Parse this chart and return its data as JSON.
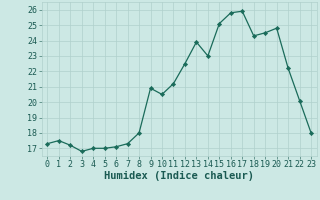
{
  "x": [
    0,
    1,
    2,
    3,
    4,
    5,
    6,
    7,
    8,
    9,
    10,
    11,
    12,
    13,
    14,
    15,
    16,
    17,
    18,
    19,
    20,
    21,
    22,
    23
  ],
  "y": [
    17.3,
    17.5,
    17.2,
    16.8,
    17.0,
    17.0,
    17.1,
    17.3,
    18.0,
    20.9,
    20.5,
    21.2,
    22.5,
    23.9,
    23.0,
    25.1,
    25.8,
    25.9,
    24.3,
    24.5,
    24.8,
    22.2,
    20.1,
    18.0
  ],
  "line_color": "#1a6b5a",
  "marker": "D",
  "marker_size": 2.2,
  "bg_color": "#cce8e4",
  "grid_color": "#b0d0cc",
  "xlabel": "Humidex (Indice chaleur)",
  "xlim": [
    -0.5,
    23.5
  ],
  "ylim": [
    16.5,
    26.5
  ],
  "yticks": [
    17,
    18,
    19,
    20,
    21,
    22,
    23,
    24,
    25,
    26
  ],
  "xticks": [
    0,
    1,
    2,
    3,
    4,
    5,
    6,
    7,
    8,
    9,
    10,
    11,
    12,
    13,
    14,
    15,
    16,
    17,
    18,
    19,
    20,
    21,
    22,
    23
  ],
  "xtick_labels": [
    "0",
    "1",
    "2",
    "3",
    "4",
    "5",
    "6",
    "7",
    "8",
    "9",
    "10",
    "11",
    "12",
    "13",
    "14",
    "15",
    "16",
    "17",
    "18",
    "19",
    "20",
    "21",
    "22",
    "23"
  ],
  "ytick_labels": [
    "17",
    "18",
    "19",
    "20",
    "21",
    "22",
    "23",
    "24",
    "25",
    "26"
  ],
  "font_color": "#1a5a52",
  "label_fontsize": 7.5,
  "tick_fontsize": 6.0
}
